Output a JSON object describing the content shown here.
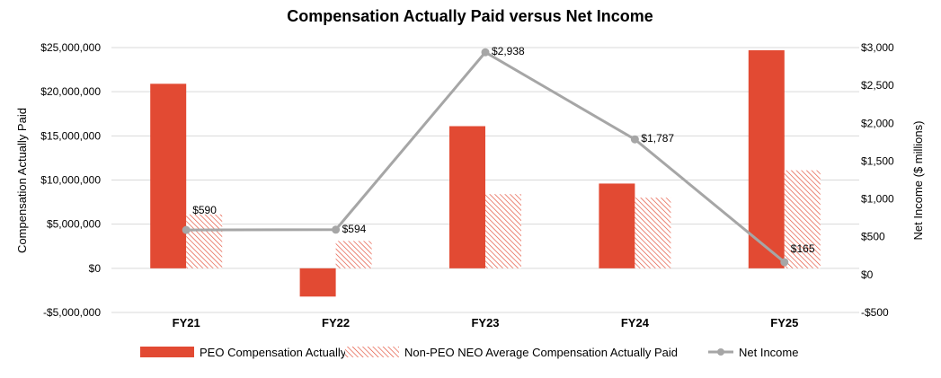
{
  "chart_data": {
    "type": "bar",
    "title": "Compensation Actually Paid versus Net Income",
    "categories": [
      "FY21",
      "FY22",
      "FY23",
      "FY24",
      "FY25"
    ],
    "ylabel": "Compensation Actually Paid",
    "y2label": "Net Income ($ millions)",
    "ylim": [
      -5000000,
      25000000
    ],
    "y2lim": [
      -500,
      3000
    ],
    "yticks": [
      -5000000,
      0,
      5000000,
      10000000,
      15000000,
      20000000,
      25000000
    ],
    "yticklabels": [
      "-$5,000,000",
      "$0",
      "$5,000,000",
      "$10,000,000",
      "$15,000,000",
      "$20,000,000",
      "$25,000,000"
    ],
    "y2ticks": [
      -500,
      0,
      500,
      1000,
      1500,
      2000,
      2500,
      3000
    ],
    "y2ticklabels": [
      "-$500",
      "$0",
      "$500",
      "$1,000",
      "$1,500",
      "$2,000",
      "$2,500",
      "$3,000"
    ],
    "series": [
      {
        "name": "PEO Compensation Actually Paid",
        "type": "bar",
        "axis": "left",
        "values": [
          20900000,
          -3200000,
          16100000,
          9600000,
          24700000
        ],
        "color": "#e24a33"
      },
      {
        "name": "Non-PEO NEO Average Compensation Actually Paid",
        "type": "bar-hatched",
        "axis": "left",
        "values": [
          6100000,
          3100000,
          8400000,
          8000000,
          11100000
        ],
        "color": "#e24a33"
      },
      {
        "name": "Net Income",
        "type": "line",
        "axis": "right",
        "values": [
          590,
          594,
          2938,
          1787,
          165
        ],
        "labels": [
          "$590",
          "$594",
          "$2,938",
          "$1,787",
          "$165"
        ],
        "color": "#a6a6a6"
      }
    ],
    "legend": "bottom",
    "grid": true
  }
}
